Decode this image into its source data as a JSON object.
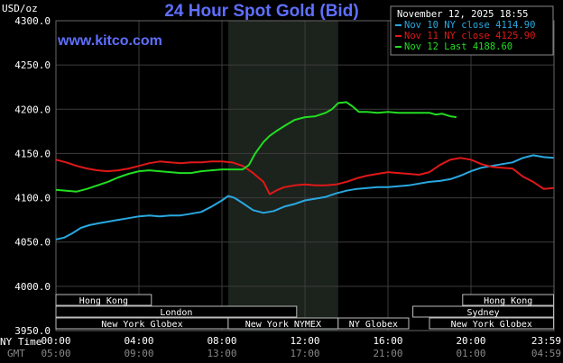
{
  "chart_data": {
    "type": "line",
    "title": "24 Hour Spot Gold (Bid)",
    "website": "www.kitco.com",
    "unit_label": "USD/oz",
    "timestamp": "November 12, 2025 18:55",
    "ylim": [
      3950,
      4300
    ],
    "y_ticks": [
      "4300.0",
      "4250.0",
      "4200.0",
      "4150.0",
      "4100.0",
      "4050.0",
      "4000.0",
      "3950.0"
    ],
    "y_tick_values": [
      4300,
      4250,
      4200,
      4150,
      4100,
      4050,
      4000,
      3950
    ],
    "x_range_hours": [
      0,
      24
    ],
    "ny_time_label": "NY Time",
    "gmt_label": "GMT",
    "ny_time_ticks": [
      "00:00",
      "04:00",
      "08:00",
      "12:00",
      "16:00",
      "20:00",
      "23:59"
    ],
    "gmt_ticks": [
      "05:00",
      "09:00",
      "13:00",
      "17:00",
      "21:00",
      "01:00",
      "04:59"
    ],
    "x_tick_hours": [
      0,
      4,
      8,
      12,
      16,
      20,
      23.98
    ],
    "grid": true,
    "legend_position": "top-right",
    "shaded_session_hours": [
      8.3,
      13.6
    ],
    "colors": {
      "background": "#000000",
      "grid": "#3c3c3c",
      "title": "#5f6fff",
      "shade": "#1c221c",
      "session_box": "#bdbdbd"
    },
    "legend": [
      {
        "label": "Nov 10 NY close 4114.90",
        "color": "#29a8e0"
      },
      {
        "label": "Nov 11 NY close 4125.90",
        "color": "#e01818"
      },
      {
        "label": "Nov 12 Last 4188.60",
        "color": "#22dd22"
      }
    ],
    "sessions": [
      {
        "label": "Hong Kong",
        "start": 0,
        "end": 4.6,
        "row": 0
      },
      {
        "label": "Hong Kong",
        "start": 19.6,
        "end": 23.98,
        "row": 0
      },
      {
        "label": "London",
        "start": 0,
        "end": 11.6,
        "row": 1
      },
      {
        "label": "Sydney",
        "start": 17.2,
        "end": 23.98,
        "row": 1
      },
      {
        "label": "New York Globex",
        "start": 0,
        "end": 8.3,
        "row": 2
      },
      {
        "label": "New York NYMEX",
        "start": 8.3,
        "end": 13.6,
        "row": 2
      },
      {
        "label": "NY Globex",
        "start": 13.6,
        "end": 17.0,
        "row": 2
      },
      {
        "label": "New York Globex",
        "start": 18.0,
        "end": 23.98,
        "row": 2
      }
    ],
    "series": [
      {
        "name": "Nov 10 NY close 4114.90",
        "color": "#29a8e0",
        "x": [
          0,
          0.4,
          0.8,
          1.2,
          1.6,
          2.0,
          2.5,
          3.0,
          3.5,
          4.0,
          4.5,
          5.0,
          5.5,
          6.0,
          6.5,
          7.0,
          7.5,
          8.0,
          8.3,
          8.6,
          9.0,
          9.5,
          10.0,
          10.5,
          11.0,
          11.5,
          12.0,
          12.5,
          13.0,
          13.5,
          14.0,
          14.5,
          15.0,
          15.5,
          16.0,
          16.5,
          17.0,
          17.5,
          18.0,
          18.5,
          19.0,
          19.5,
          20.0,
          20.5,
          21.0,
          21.5,
          22.0,
          22.5,
          23.0,
          23.5,
          23.98
        ],
        "values": [
          4053,
          4055,
          4060,
          4066,
          4069,
          4071,
          4073,
          4075,
          4077,
          4079,
          4080,
          4079,
          4080,
          4080,
          4082,
          4084,
          4090,
          4097,
          4102,
          4100,
          4094,
          4086,
          4083,
          4085,
          4090,
          4093,
          4097,
          4099,
          4101,
          4105,
          4108,
          4110,
          4111,
          4112,
          4112,
          4113,
          4114,
          4116,
          4118,
          4119,
          4121,
          4125,
          4130,
          4134,
          4136,
          4138,
          4140,
          4145,
          4148,
          4146,
          4145
        ]
      },
      {
        "name": "Nov 11 NY close 4125.90",
        "color": "#e01818",
        "x": [
          0,
          0.5,
          1.0,
          1.5,
          2.0,
          2.5,
          3.0,
          3.5,
          4.0,
          4.5,
          5.0,
          5.5,
          6.0,
          6.5,
          7.0,
          7.5,
          8.0,
          8.5,
          9.0,
          9.5,
          10.0,
          10.3,
          10.6,
          11.0,
          11.5,
          12.0,
          12.5,
          13.0,
          13.5,
          14.0,
          14.5,
          15.0,
          15.5,
          16.0,
          16.5,
          17.0,
          17.5,
          18.0,
          18.5,
          19.0,
          19.5,
          20.0,
          20.5,
          21.0,
          21.5,
          22.0,
          22.5,
          23.0,
          23.5,
          23.98
        ],
        "values": [
          4143,
          4140,
          4136,
          4133,
          4131,
          4130,
          4131,
          4133,
          4136,
          4139,
          4141,
          4140,
          4139,
          4140,
          4140,
          4141,
          4141,
          4140,
          4136,
          4128,
          4118,
          4104,
          4108,
          4112,
          4114,
          4115,
          4114,
          4114,
          4115,
          4118,
          4122,
          4125,
          4127,
          4129,
          4128,
          4127,
          4126,
          4129,
          4137,
          4143,
          4145,
          4143,
          4138,
          4135,
          4134,
          4133,
          4124,
          4118,
          4110,
          4111
        ]
      },
      {
        "name": "Nov 12 Last 4188.60",
        "color": "#22dd22",
        "x": [
          0,
          0.5,
          1.0,
          1.5,
          2.0,
          2.5,
          3.0,
          3.5,
          4.0,
          4.5,
          5.0,
          5.5,
          6.0,
          6.5,
          7.0,
          7.5,
          8.0,
          8.5,
          9.0,
          9.3,
          9.6,
          10.0,
          10.3,
          10.6,
          11.0,
          11.5,
          12.0,
          12.5,
          13.0,
          13.3,
          13.6,
          14.0,
          14.3,
          14.6,
          15.0,
          15.5,
          16.0,
          16.5,
          17.0,
          17.5,
          18.0,
          18.3,
          18.6,
          19.0,
          19.3
        ],
        "values": [
          4109,
          4108,
          4107,
          4110,
          4114,
          4118,
          4123,
          4127,
          4130,
          4131,
          4130,
          4129,
          4128,
          4128,
          4130,
          4131,
          4132,
          4132,
          4132,
          4137,
          4150,
          4163,
          4170,
          4175,
          4181,
          4188,
          4191,
          4192,
          4196,
          4200,
          4207,
          4208,
          4203,
          4197,
          4197,
          4196,
          4197,
          4196,
          4196,
          4196,
          4196,
          4194,
          4195,
          4192,
          4191
        ]
      }
    ]
  }
}
